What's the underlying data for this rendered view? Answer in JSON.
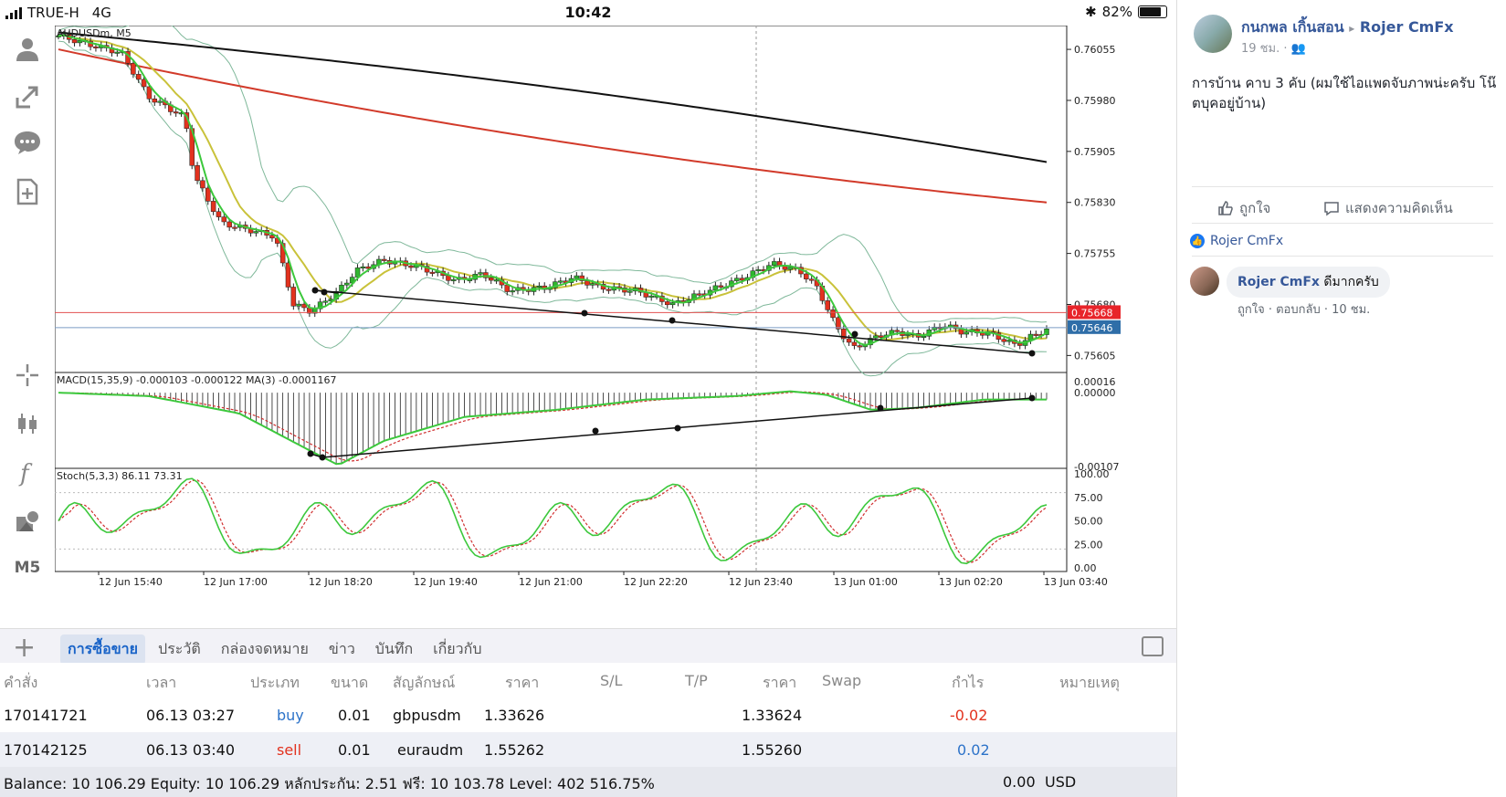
{
  "statusbar": {
    "carrier": "TRUE-H",
    "network": "4G",
    "time": "10:42",
    "battery": "82%",
    "bluetooth": "✱"
  },
  "chart": {
    "symbol_label": "AUDUSDm, M5",
    "macd_label": "MACD(15,35,9) -0.000103 -0.000122 MA(3) -0.0001167",
    "stoch_label": "Stoch(5,3,3) 86.11 73.31",
    "price_ticks": [
      "0.76055",
      "0.75980",
      "0.75905",
      "0.75830",
      "0.75755",
      "0.75680",
      "0.75605"
    ],
    "price_bid": "0.75668",
    "price_ask": "0.75646",
    "macd_ticks": [
      "0.00016",
      "0.00000",
      "-0.00107"
    ],
    "stoch_ticks": [
      "100.00",
      "75.00",
      "50.00",
      "25.00",
      "0.00"
    ],
    "time_ticks": [
      "12 Jun 15:40",
      "12 Jun 17:00",
      "12 Jun 18:20",
      "12 Jun 19:40",
      "12 Jun 21:00",
      "12 Jun 22:20",
      "12 Jun 23:40",
      "13 Jun 01:00",
      "13 Jun 02:20",
      "13 Jun 03:40"
    ],
    "colors": {
      "up": "#2fb52f",
      "down": "#e2321e",
      "ma_black": "#111111",
      "ma_red": "#d23a2a",
      "ma_yellow": "#c9c23a",
      "ma_green": "#3cc83c",
      "bb": "#7fb89a",
      "bid_line": "#e25050",
      "bid_box": "#e8242a",
      "ask_box": "#2f6ea8"
    }
  },
  "left_tools": {
    "m5_label": "M5",
    "icons": [
      "account-icon",
      "transfer-icon",
      "chat-icon",
      "new-order-icon",
      "crosshair-icon",
      "candlestick-icon",
      "indicator-icon",
      "objects-icon"
    ]
  },
  "tabs": {
    "plus": "+",
    "items": [
      {
        "label": "การซื้อขาย",
        "active": true
      },
      {
        "label": "ประวัติ",
        "active": false
      },
      {
        "label": "กล่องจดหมาย",
        "active": false
      },
      {
        "label": "ข่าว",
        "active": false
      },
      {
        "label": "บันทึก",
        "active": false
      },
      {
        "label": "เกี่ยวกับ",
        "active": false
      }
    ]
  },
  "trades": {
    "headers": [
      "คำสั่ง",
      "เวลา",
      "ประเภท",
      "ขนาด",
      "สัญลักษณ์",
      "ราคา",
      "S/L",
      "T/P",
      "ราคา",
      "Swap",
      "กำไร",
      "หมายเหตุ"
    ],
    "rows": [
      {
        "order": "170141721",
        "time": "06.13 03:27",
        "type": "buy",
        "size": "0.01",
        "symbol": "gbpusdm",
        "price": "1.33626",
        "current": "1.33624",
        "profit": "-0.02"
      },
      {
        "order": "170142125",
        "time": "06.13 03:40",
        "type": "sell",
        "size": "0.01",
        "symbol": "euraudm",
        "price": "1.55262",
        "current": "1.55260",
        "profit": "0.02"
      }
    ]
  },
  "footer": {
    "summary": "Balance: 10 106.29 Equity: 10 106.29 หลักประกัน: 2.51 ฟรี: 10 103.78 Level: 402 516.75%",
    "total": "0.00",
    "currency": "USD"
  },
  "facebook": {
    "author": "กนกพล เกิ้นสอน",
    "arrow": "▸",
    "group": "Rojer CmFx",
    "meta": "19 ชม. · 👥",
    "post_text": "การบ้าน คาบ 3 คับ (ผมใช้ไอแพดจับภาพน่ะครับ โน๊ตบุคอยู่บ้าน)",
    "like_label": "ถูกใจ",
    "comment_label": "แสดงความคิดเห็น",
    "likers": "Rojer CmFx",
    "comment_author": "Rojer CmFx",
    "comment_text": "ดีมากครับ",
    "comment_actions": "ถูกใจ · ตอบกลับ · 10 ชม."
  }
}
